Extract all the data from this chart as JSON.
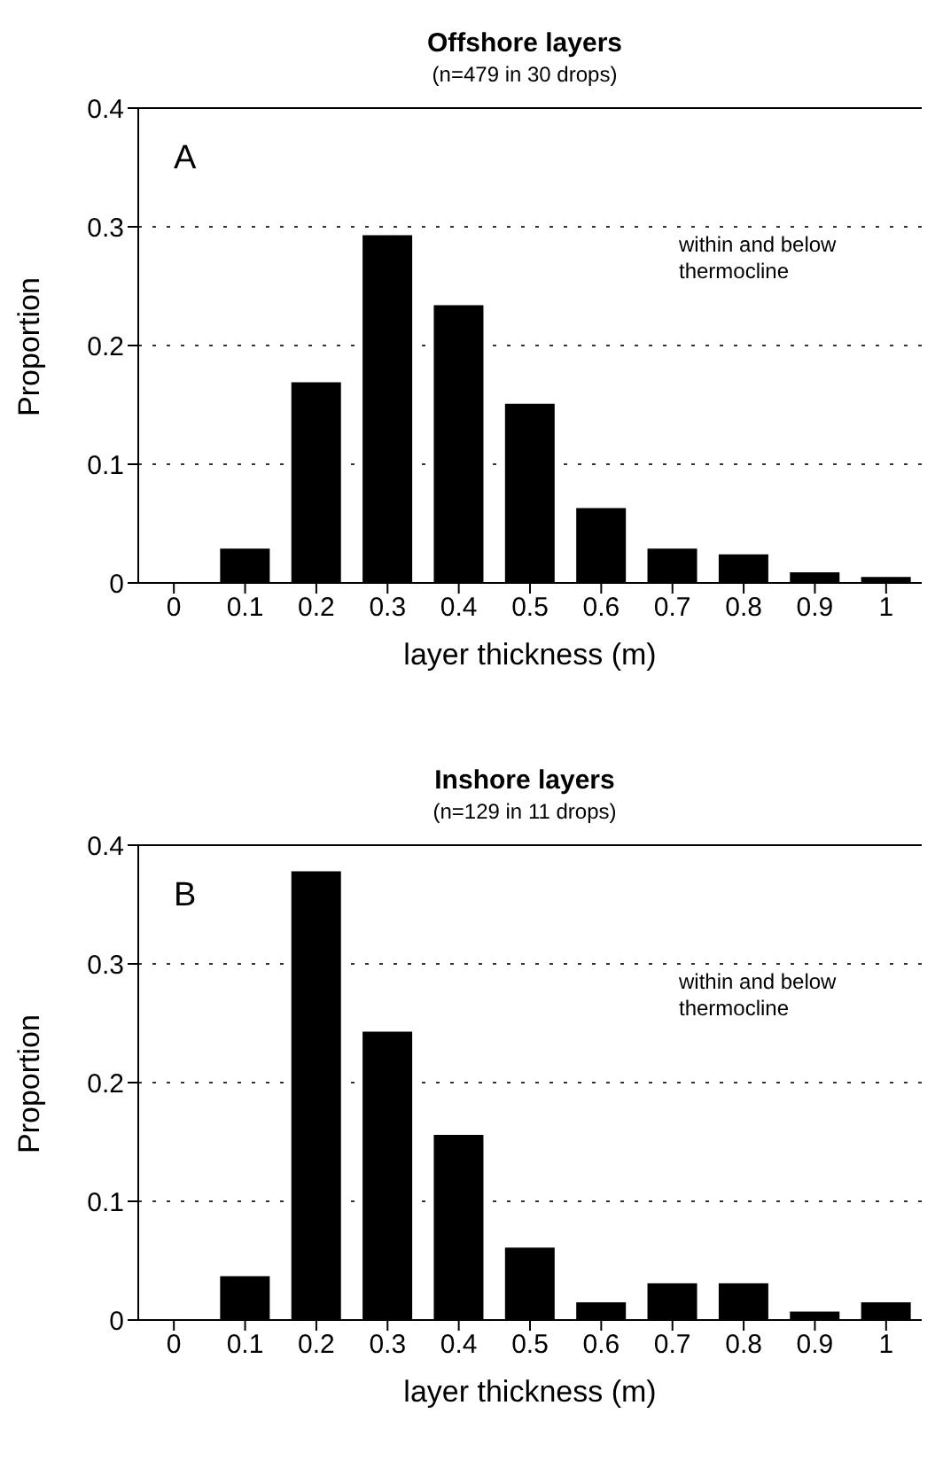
{
  "chart_data": [
    {
      "type": "bar",
      "title": "Offshore layers",
      "subtitle": "(n=479 in 30 drops)",
      "xlabel": "layer thickness (m)",
      "ylabel": "Proportion",
      "categories": [
        "0",
        "0.1",
        "0.2",
        "0.3",
        "0.4",
        "0.5",
        "0.6",
        "0.7",
        "0.8",
        "0.9",
        "1"
      ],
      "values": [
        0,
        0.029,
        0.169,
        0.293,
        0.234,
        0.151,
        0.063,
        0.029,
        0.024,
        0.009,
        0.005
      ],
      "color": "#000000",
      "ylim": [
        0,
        0.4
      ],
      "yticks": [
        0,
        0.1,
        0.2,
        0.3,
        0.4
      ],
      "grid": "y",
      "annotations": [
        "A",
        "within and below thermocline"
      ]
    },
    {
      "type": "bar",
      "title": "Inshore layers",
      "subtitle": "(n=129 in 11 drops)",
      "xlabel": "layer thickness (m)",
      "ylabel": "Proportion",
      "categories": [
        "0",
        "0.1",
        "0.2",
        "0.3",
        "0.4",
        "0.5",
        "0.6",
        "0.7",
        "0.8",
        "0.9",
        "1"
      ],
      "values": [
        0,
        0.037,
        0.378,
        0.243,
        0.156,
        0.061,
        0.015,
        0.031,
        0.031,
        0.007,
        0.015
      ],
      "color": "#000000",
      "ylim": [
        0,
        0.4
      ],
      "yticks": [
        0,
        0.1,
        0.2,
        0.3,
        0.4
      ],
      "grid": "y",
      "annotations": [
        "B",
        "within and below thermocline"
      ]
    }
  ]
}
